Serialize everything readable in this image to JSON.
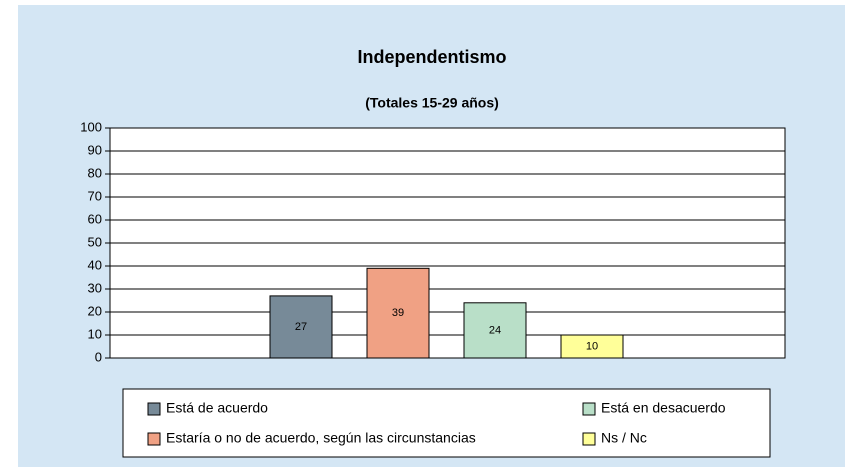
{
  "chart_data": {
    "type": "bar",
    "title": "Independentismo",
    "subtitle": "(Totales 15-29 años)",
    "categories": [
      null
    ],
    "series": [
      {
        "name": "Está de acuerdo",
        "color": "#778a98",
        "values": [
          27
        ]
      },
      {
        "name": "Estaría o no de acuerdo, según las circunstancias",
        "color": "#f0a184",
        "values": [
          39
        ]
      },
      {
        "name": "Está en desacuerdo",
        "color": "#b9dfc8",
        "values": [
          24
        ]
      },
      {
        "name": "Ns / Nc",
        "color": "#ffff99",
        "values": [
          10
        ]
      }
    ],
    "ylim": [
      0,
      100
    ],
    "yticks": [
      0,
      10,
      20,
      30,
      40,
      50,
      60,
      70,
      80,
      90,
      100
    ],
    "grid": true
  }
}
